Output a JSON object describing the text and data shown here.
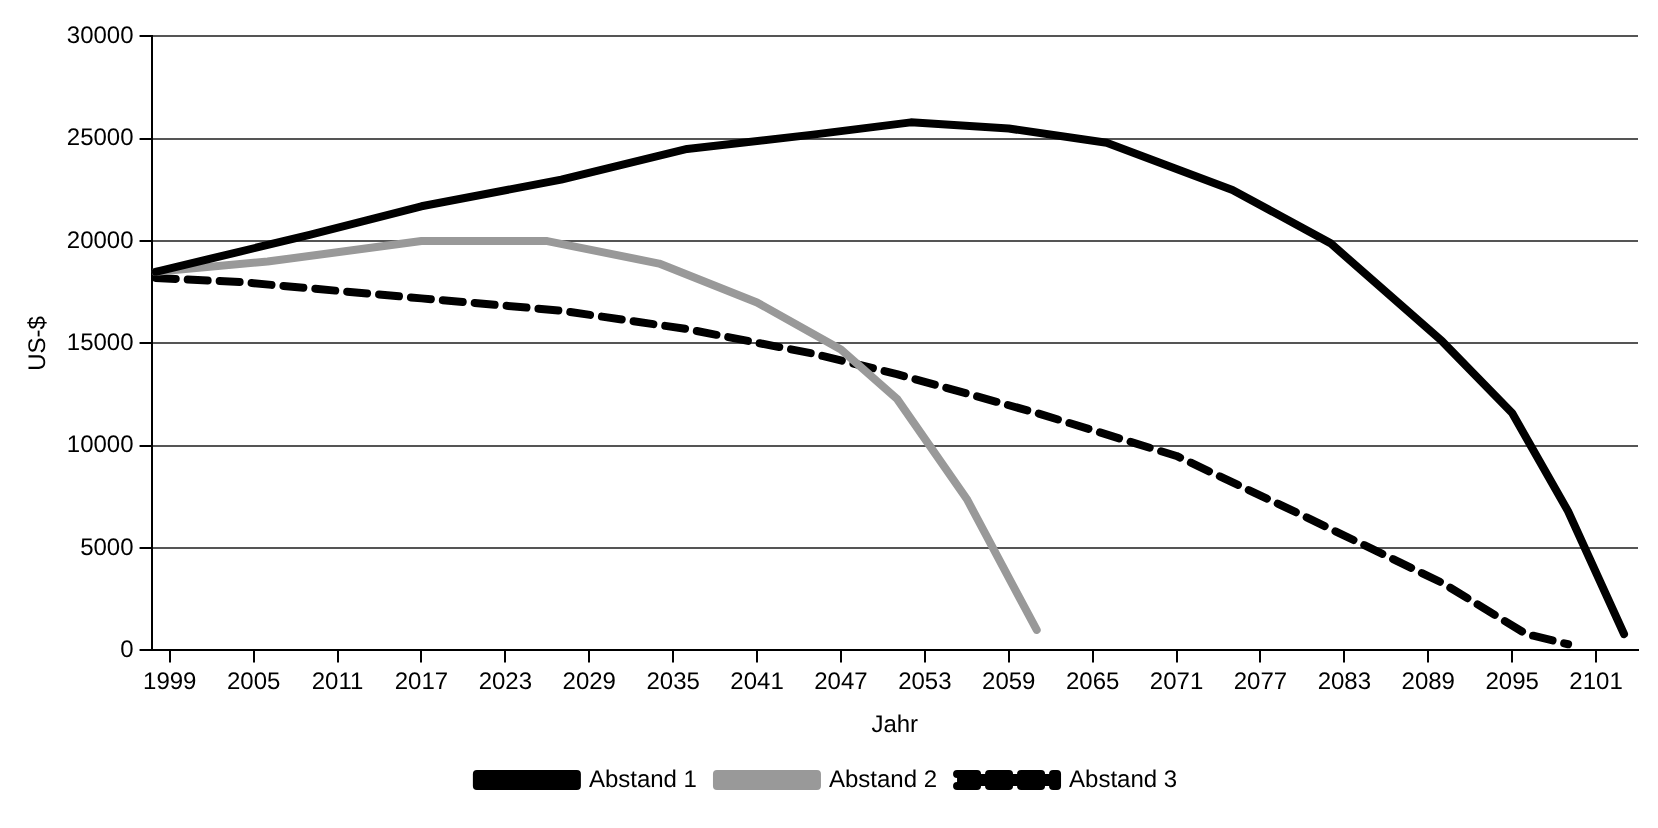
{
  "chart_data": {
    "type": "line",
    "xlabel": "Jahr",
    "ylabel": "US-$",
    "xlim": [
      1997.7,
      2104
    ],
    "ylim": [
      0,
      30000
    ],
    "xticks": [
      1999,
      2005,
      2011,
      2017,
      2023,
      2029,
      2035,
      2041,
      2047,
      2053,
      2059,
      2065,
      2071,
      2077,
      2083,
      2089,
      2095,
      2101
    ],
    "yticks": [
      0,
      5000,
      10000,
      15000,
      20000,
      25000,
      30000
    ],
    "grid": "y",
    "legend": "bottom",
    "marker": "none",
    "series": [
      {
        "name": "Abstand 1",
        "color": "#000000",
        "line_style": "solid",
        "x": [
          1998,
          2009,
          2017,
          2027,
          2036,
          2045,
          2052,
          2059,
          2066,
          2075,
          2082,
          2090,
          2095,
          2099,
          2103
        ],
        "values": [
          18500,
          20300,
          21700,
          23000,
          24500,
          25200,
          25800,
          25500,
          24800,
          22500,
          19900,
          15100,
          11600,
          6800,
          800
        ]
      },
      {
        "name": "Abstand 2",
        "color": "#999999",
        "line_style": "solid",
        "x": [
          1998,
          2006,
          2017,
          2026,
          2034,
          2041,
          2047,
          2051,
          2056,
          2061
        ],
        "values": [
          18500,
          19000,
          20000,
          20000,
          18900,
          17000,
          14700,
          12300,
          7400,
          1000
        ]
      },
      {
        "name": "Abstand 3",
        "color": "#000000",
        "line_style": "dashed",
        "x": [
          1998,
          2004,
          2017,
          2027,
          2036,
          2045,
          2051,
          2061,
          2071,
          2080,
          2090,
          2096,
          2099
        ],
        "values": [
          18200,
          18000,
          17200,
          16600,
          15700,
          14500,
          13500,
          11600,
          9500,
          6600,
          3300,
          800,
          300
        ]
      }
    ]
  }
}
